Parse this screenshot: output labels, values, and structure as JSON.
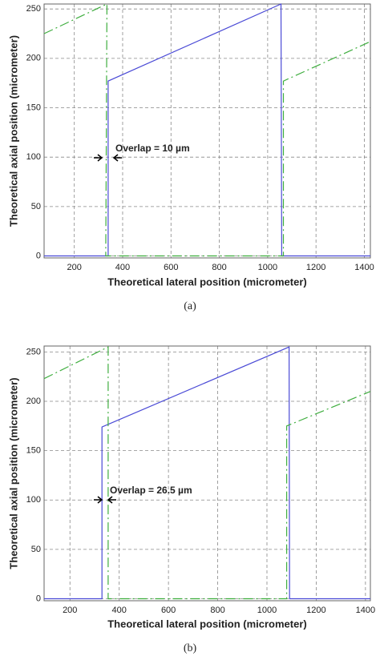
{
  "chart_data": [
    {
      "type": "line",
      "caption": "(a)",
      "xlabel": "Theoretical lateral position (micrometer)",
      "ylabel": "Theoretical axial position (micrometer)",
      "annotation": "Overlap = 10 µm",
      "xlim": [
        75,
        1425
      ],
      "ylim": [
        -2,
        255
      ],
      "xticks": [
        200,
        400,
        600,
        800,
        1000,
        1200,
        1400
      ],
      "yticks": [
        0,
        50,
        100,
        150,
        200,
        250
      ],
      "grid": true,
      "series": [
        {
          "color": "#4a4ad6",
          "style": "solid",
          "x": [
            75,
            340,
            340,
            1055,
            1058,
            1425
          ],
          "values": [
            0,
            0,
            177,
            255,
            0,
            0
          ]
        },
        {
          "color": "#3fae3f",
          "style": "dashed",
          "x": [
            75,
            335,
            330,
            1065,
            1065,
            1425
          ],
          "values": [
            225,
            255,
            0,
            0,
            177,
            217
          ]
        }
      ]
    },
    {
      "type": "line",
      "caption": "(b)",
      "xlabel": "Theoretical lateral position (micrometer)",
      "ylabel": "Theoretical axial position (micrometer)",
      "annotation": "Overlap = 26.5 µm",
      "xlim": [
        95,
        1420
      ],
      "ylim": [
        -2,
        256
      ],
      "xticks": [
        200,
        400,
        600,
        800,
        1000,
        1200,
        1400
      ],
      "yticks": [
        0,
        50,
        100,
        150,
        200,
        250
      ],
      "grid": true,
      "series": [
        {
          "color": "#4a4ad6",
          "style": "solid",
          "x": [
            95,
            330,
            330,
            1090,
            1092,
            1420
          ],
          "values": [
            0,
            0,
            174,
            255,
            0,
            0
          ]
        },
        {
          "color": "#3fae3f",
          "style": "dashed",
          "x": [
            95,
            355,
            355,
            1080,
            1080,
            1420
          ],
          "values": [
            223,
            255,
            0,
            0,
            175,
            210
          ]
        }
      ]
    }
  ]
}
